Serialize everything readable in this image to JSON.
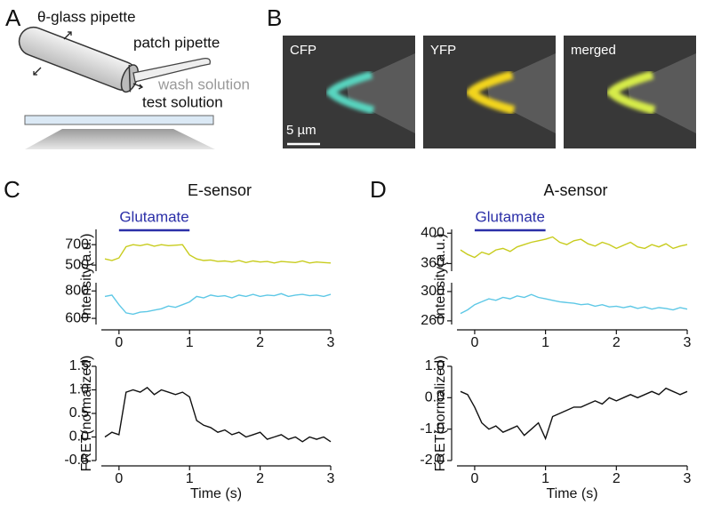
{
  "panels": [
    "A",
    "B",
    "C",
    "D"
  ],
  "diagram": {
    "labels": [
      "θ-glass pipette",
      "patch pipette",
      "wash solution",
      "test solution"
    ]
  },
  "images": {
    "labels": [
      "CFP",
      "YFP",
      "merged"
    ],
    "scale_bar": "5 µm"
  },
  "chart_data": [
    {
      "type": "line",
      "title": "E-sensor",
      "annotation": "Glutamate",
      "annotation_span": [
        0,
        1
      ],
      "ylabel": "Intensity(a.u.)",
      "color": "#c8cc1e",
      "x": [
        -0.2,
        -0.1,
        0,
        0.1,
        0.2,
        0.3,
        0.4,
        0.5,
        0.6,
        0.7,
        0.8,
        0.9,
        1.0,
        1.1,
        1.2,
        1.3,
        1.4,
        1.5,
        1.6,
        1.7,
        1.8,
        1.9,
        2.0,
        2.1,
        2.2,
        2.3,
        2.4,
        2.5,
        2.6,
        2.7,
        2.8,
        2.9,
        3.0
      ],
      "values": [
        560,
        545,
        570,
        680,
        700,
        690,
        705,
        685,
        700,
        690,
        695,
        700,
        600,
        560,
        545,
        550,
        535,
        540,
        530,
        545,
        525,
        540,
        530,
        535,
        520,
        535,
        530,
        525,
        540,
        520,
        530,
        525,
        520
      ],
      "xlim": [
        -0.25,
        3
      ],
      "ylim": [
        440,
        850
      ],
      "yticks": [
        500,
        700
      ]
    },
    {
      "type": "line",
      "color": "#5ec8e6",
      "x": [
        -0.2,
        -0.1,
        0,
        0.1,
        0.2,
        0.3,
        0.4,
        0.5,
        0.6,
        0.7,
        0.8,
        0.9,
        1.0,
        1.1,
        1.2,
        1.3,
        1.4,
        1.5,
        1.6,
        1.7,
        1.8,
        1.9,
        2.0,
        2.1,
        2.2,
        2.3,
        2.4,
        2.5,
        2.6,
        2.7,
        2.8,
        2.9,
        3.0
      ],
      "values": [
        760,
        770,
        700,
        640,
        630,
        645,
        650,
        660,
        670,
        690,
        680,
        700,
        720,
        760,
        750,
        770,
        760,
        765,
        750,
        770,
        760,
        775,
        760,
        770,
        765,
        780,
        760,
        770,
        775,
        765,
        770,
        760,
        775
      ],
      "xlim": [
        -0.25,
        3
      ],
      "xticks": [
        0,
        1,
        2,
        3
      ],
      "ylim": [
        555,
        860
      ],
      "yticks": [
        600,
        800
      ]
    },
    {
      "type": "line",
      "ylabel": "FRET(normalized)",
      "xlabel": "Time (s)",
      "color": "#111111",
      "x": [
        -0.2,
        -0.1,
        0,
        0.1,
        0.2,
        0.3,
        0.4,
        0.5,
        0.6,
        0.7,
        0.8,
        0.9,
        1.0,
        1.1,
        1.2,
        1.3,
        1.4,
        1.5,
        1.6,
        1.7,
        1.8,
        1.9,
        2.0,
        2.1,
        2.2,
        2.3,
        2.4,
        2.5,
        2.6,
        2.7,
        2.8,
        2.9,
        3.0
      ],
      "values": [
        0.0,
        0.1,
        0.05,
        0.95,
        1.0,
        0.95,
        1.05,
        0.9,
        1.0,
        0.95,
        0.9,
        0.95,
        0.85,
        0.35,
        0.25,
        0.2,
        0.1,
        0.15,
        0.05,
        0.1,
        0.0,
        0.05,
        0.1,
        -0.05,
        0.0,
        0.05,
        -0.05,
        0.0,
        -0.1,
        0.0,
        -0.05,
        0.0,
        -0.1
      ],
      "xlim": [
        -0.25,
        3
      ],
      "xticks": [
        0,
        1,
        2,
        3
      ],
      "ylim": [
        -0.5,
        1.5
      ],
      "yticks": [
        -0.5,
        {
          "value": 0,
          "label": "0.0"
        },
        0.5,
        {
          "value": 1,
          "label": "1.0"
        },
        1.5
      ]
    },
    {
      "type": "line",
      "title": "A-sensor",
      "annotation": "Glutamate",
      "annotation_span": [
        0,
        1
      ],
      "ylabel": "Intensity(a.u.)",
      "color": "#c8cc1e",
      "x": [
        -0.2,
        -0.1,
        0,
        0.1,
        0.2,
        0.3,
        0.4,
        0.5,
        0.6,
        0.7,
        0.8,
        0.9,
        1.0,
        1.1,
        1.2,
        1.3,
        1.4,
        1.5,
        1.6,
        1.7,
        1.8,
        1.9,
        2.0,
        2.1,
        2.2,
        2.3,
        2.4,
        2.5,
        2.6,
        2.7,
        2.8,
        2.9,
        3.0
      ],
      "values": [
        378,
        372,
        368,
        375,
        372,
        378,
        380,
        376,
        382,
        385,
        388,
        390,
        392,
        395,
        388,
        385,
        390,
        392,
        386,
        383,
        388,
        385,
        380,
        384,
        388,
        382,
        380,
        385,
        382,
        386,
        380,
        383,
        385
      ],
      "xlim": [
        -0.25,
        3
      ],
      "ylim": [
        350,
        405
      ],
      "yticks": [
        360,
        400
      ]
    },
    {
      "type": "line",
      "color": "#5ec8e6",
      "x": [
        -0.2,
        -0.1,
        0,
        0.1,
        0.2,
        0.3,
        0.4,
        0.5,
        0.6,
        0.7,
        0.8,
        0.9,
        1.0,
        1.1,
        1.2,
        1.3,
        1.4,
        1.5,
        1.6,
        1.7,
        1.8,
        1.9,
        2.0,
        2.1,
        2.2,
        2.3,
        2.4,
        2.5,
        2.6,
        2.7,
        2.8,
        2.9,
        3.0
      ],
      "values": [
        270,
        275,
        282,
        286,
        290,
        288,
        292,
        290,
        294,
        292,
        296,
        292,
        290,
        288,
        286,
        285,
        284,
        282,
        283,
        280,
        282,
        279,
        280,
        278,
        280,
        277,
        279,
        276,
        278,
        277,
        275,
        278,
        276
      ],
      "xlim": [
        -0.25,
        3
      ],
      "xticks": [
        0,
        1,
        2,
        3
      ],
      "ylim": [
        255,
        312
      ],
      "yticks": [
        260,
        300
      ]
    },
    {
      "type": "line",
      "ylabel": "FRET(normalized)",
      "xlabel": "Time (s)",
      "color": "#111111",
      "x": [
        -0.2,
        -0.1,
        0,
        0.1,
        0.2,
        0.3,
        0.4,
        0.5,
        0.6,
        0.7,
        0.8,
        0.9,
        1.0,
        1.1,
        1.2,
        1.3,
        1.4,
        1.5,
        1.6,
        1.7,
        1.8,
        1.9,
        2.0,
        2.1,
        2.2,
        2.3,
        2.4,
        2.5,
        2.6,
        2.7,
        2.8,
        2.9,
        3.0
      ],
      "values": [
        0.2,
        0.1,
        -0.3,
        -0.8,
        -1.0,
        -0.9,
        -1.1,
        -1.0,
        -0.9,
        -1.2,
        -1.0,
        -0.8,
        -1.3,
        -0.6,
        -0.5,
        -0.4,
        -0.3,
        -0.3,
        -0.2,
        -0.1,
        -0.2,
        0.0,
        -0.1,
        0.0,
        0.1,
        0.0,
        0.1,
        0.2,
        0.1,
        0.3,
        0.2,
        0.1,
        0.2
      ],
      "xlim": [
        -0.25,
        3
      ],
      "xticks": [
        0,
        1,
        2,
        3
      ],
      "ylim": [
        -2,
        1
      ],
      "yticks": [
        {
          "value": -2,
          "label": "-2.0"
        },
        {
          "value": -1,
          "label": "-1.0"
        },
        {
          "value": 0,
          "label": "0.0"
        },
        {
          "value": 1,
          "label": "1.0"
        }
      ]
    }
  ]
}
